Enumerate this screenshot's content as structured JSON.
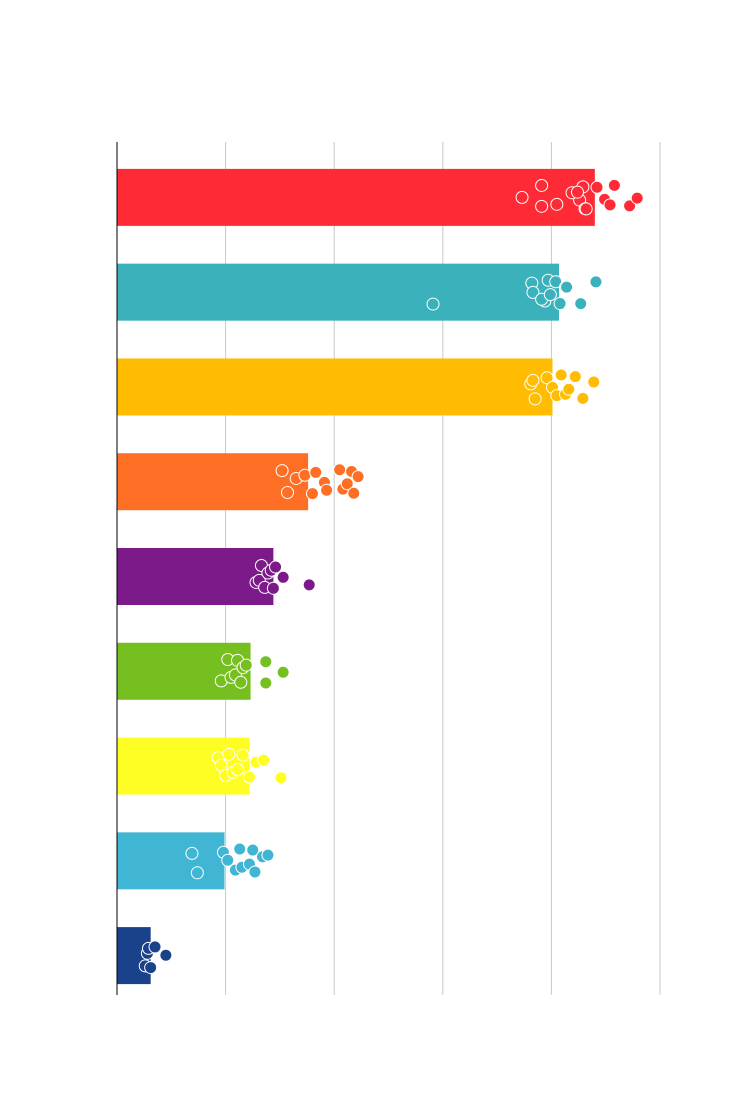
{
  "chart_data": {
    "type": "bar",
    "orientation": "horizontal",
    "categories": [
      null,
      null,
      null,
      null,
      null,
      null,
      null,
      null,
      null
    ],
    "values": [
      4.4,
      4.07,
      4.01,
      1.76,
      1.44,
      1.23,
      1.22,
      0.99,
      0.31
    ],
    "colors": [
      "#fe2a36",
      "#3bb2bb",
      "#ffbc00",
      "#fe6f25",
      "#7d1a89",
      "#76bf20",
      "#fefe25",
      "#41b6d4",
      "#1a428a"
    ],
    "points": [
      [
        3.73,
        3.91,
        3.91,
        4.05,
        4.26,
        4.29,
        4.31,
        4.19,
        4.24,
        4.32,
        4.42,
        4.49,
        4.54,
        4.58,
        4.72,
        4.79
      ],
      [
        2.91,
        3.82,
        3.83,
        3.94,
        3.97,
        3.91,
        3.99,
        4.04,
        4.08,
        4.13,
        4.14,
        4.27,
        4.41
      ],
      [
        3.81,
        3.83,
        3.85,
        3.96,
        4.01,
        4.05,
        4.09,
        4.13,
        4.16,
        4.22,
        4.29,
        4.39
      ],
      [
        1.52,
        1.57,
        1.65,
        1.73,
        1.8,
        1.83,
        1.91,
        1.93,
        2.05,
        2.08,
        2.12,
        2.16,
        2.18,
        2.22
      ],
      [
        1.28,
        1.31,
        1.33,
        1.36,
        1.39,
        1.42,
        1.44,
        1.46,
        1.53,
        1.77
      ],
      [
        0.96,
        1.02,
        1.05,
        1.09,
        1.11,
        1.14,
        1.16,
        1.19,
        1.37,
        1.37,
        1.53
      ],
      [
        0.93,
        0.96,
        1.0,
        1.03,
        1.07,
        1.11,
        1.16,
        1.22,
        1.28,
        1.35,
        1.51
      ],
      [
        0.69,
        0.74,
        0.98,
        1.02,
        1.09,
        1.13,
        1.15,
        1.22,
        1.25,
        1.27,
        1.34,
        1.39
      ],
      [
        0.26,
        0.28,
        0.29,
        0.31,
        0.35,
        0.45
      ]
    ],
    "xlim": [
      0,
      5
    ],
    "xticks": [
      0,
      1,
      2,
      3,
      4,
      5
    ],
    "grid": true
  }
}
